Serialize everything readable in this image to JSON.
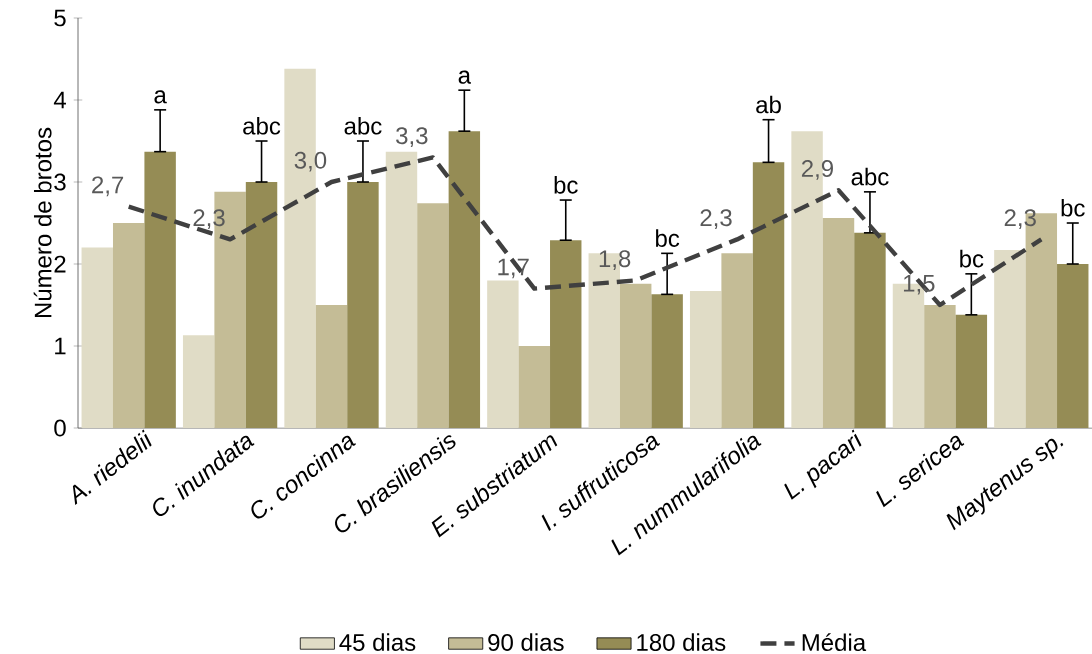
{
  "chart_data": {
    "type": "bar",
    "ylabel": "Número de brotos",
    "categories": [
      "A. riedelii",
      "C. inundata",
      "C. concinna",
      "C. brasiliensis",
      "E. substriatum",
      "I. suffruticosa",
      "L. nummularifolia",
      "L. pacari",
      "L. sericea",
      "Maytenus sp."
    ],
    "series": [
      {
        "name": "45 dias",
        "color": "#e0dcc6",
        "values": [
          2.2,
          1.13,
          4.38,
          3.37,
          1.8,
          2.13,
          1.67,
          3.62,
          1.76,
          2.17
        ]
      },
      {
        "name": "90 dias",
        "color": "#c4bc96",
        "values": [
          2.5,
          2.88,
          1.5,
          2.74,
          1.0,
          1.76,
          2.13,
          2.56,
          1.5,
          2.62
        ]
      },
      {
        "name": "180 dias",
        "color": "#958c55",
        "values": [
          3.37,
          3.0,
          3.0,
          3.62,
          2.29,
          1.63,
          3.24,
          2.38,
          1.38,
          2.0
        ],
        "errors": [
          [
            3.37,
            3.88
          ],
          [
            3.0,
            3.5
          ],
          [
            3.0,
            3.5
          ],
          [
            3.62,
            4.12
          ],
          [
            2.29,
            2.78
          ],
          [
            1.63,
            2.13
          ],
          [
            3.24,
            3.76
          ],
          [
            2.38,
            2.88
          ],
          [
            1.38,
            1.88
          ],
          [
            2.0,
            2.5
          ]
        ]
      },
      {
        "name": "Média",
        "type": "line",
        "color": "#404040",
        "line_style": "dashed",
        "values": [
          2.7,
          2.3,
          3.0,
          3.3,
          1.7,
          1.8,
          2.3,
          2.9,
          1.5,
          2.3
        ],
        "value_labels": [
          "2,7",
          "2,3",
          "3,0",
          "3,3",
          "1,7",
          "1,8",
          "2,3",
          "2,9",
          "1,5",
          "2,3"
        ]
      }
    ],
    "annotations": [
      "a",
      "abc",
      "abc",
      "a",
      "bc",
      "bc",
      "ab",
      "abc",
      "bc",
      "bc"
    ],
    "ylim": [
      0,
      5
    ],
    "yticks": [
      0,
      1,
      2,
      3,
      4,
      5
    ],
    "legend": "bottom"
  }
}
